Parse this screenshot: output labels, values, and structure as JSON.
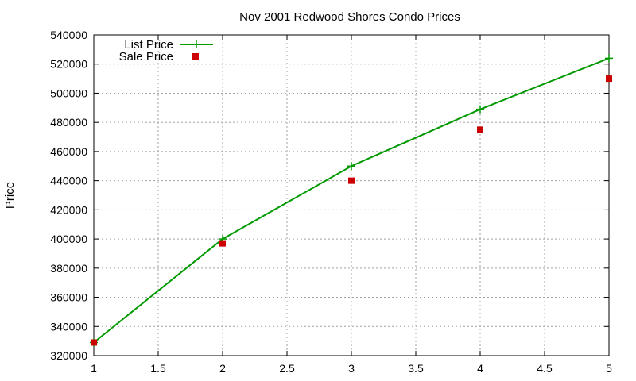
{
  "chart_data": {
    "type": "line",
    "title": "Nov 2001 Redwood Shores Condo Prices",
    "xlabel": "",
    "ylabel": "Price",
    "x": [
      1,
      2,
      3,
      4,
      5
    ],
    "xlim": [
      1,
      5
    ],
    "ylim": [
      320000,
      540000
    ],
    "xticks": [
      1,
      1.5,
      2,
      2.5,
      3,
      3.5,
      4,
      4.5,
      5
    ],
    "yticks": [
      320000,
      340000,
      360000,
      380000,
      400000,
      420000,
      440000,
      460000,
      480000,
      500000,
      520000,
      540000
    ],
    "grid": true,
    "legend_position": "top-left",
    "series": [
      {
        "name": "List Price",
        "style": "linespoints",
        "marker": "plus",
        "color": "#009900",
        "values": [
          329000,
          400000,
          450000,
          489000,
          524000
        ]
      },
      {
        "name": "Sale Price",
        "style": "points",
        "marker": "square",
        "color": "#cc0000",
        "values": [
          329000,
          397000,
          440000,
          475000,
          510000
        ]
      }
    ]
  }
}
